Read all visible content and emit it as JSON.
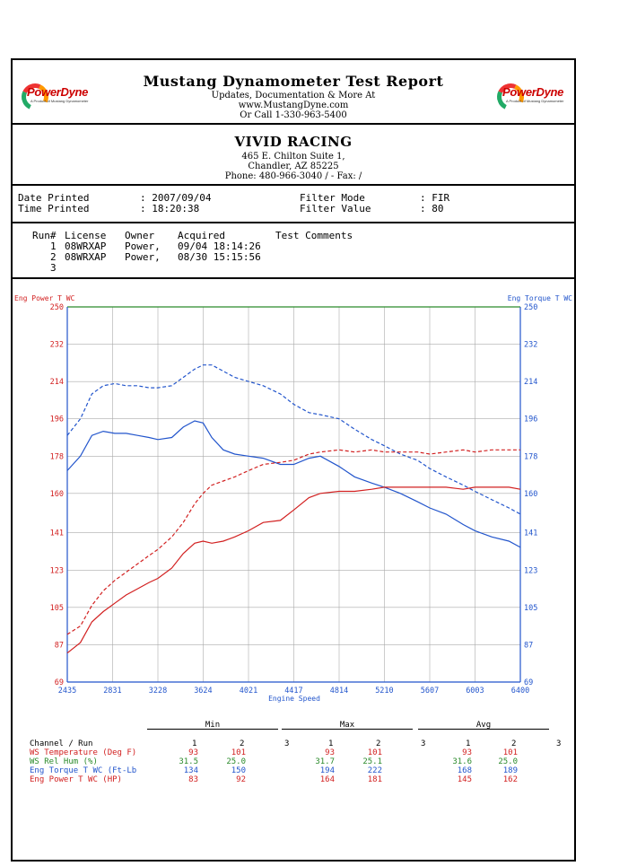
{
  "header": {
    "title": "Mustang Dynamometer Test Report",
    "line1": "Updates, Documentation & More At",
    "line2": "www.MustangDyne.com",
    "line3": "Or Call 1-330-963-5400",
    "logo_text": "PowerDyne",
    "logo_sub": "A Product of Mustang Dynamometer"
  },
  "shop": {
    "name": "VIVID RACING",
    "address1": "465 E. Chilton Suite 1,",
    "address2": "Chandler, AZ  85225",
    "phone": "Phone: 480-966-3040 /  - Fax: /"
  },
  "printed": {
    "date_label": "Date Printed",
    "date_value": ": 2007/09/04",
    "time_label": "Time Printed",
    "time_value": ": 18:20:38",
    "filter_mode_label": "Filter Mode",
    "filter_mode_value": ": FIR",
    "filter_value_label": "Filter Value",
    "filter_value_value": ": 80"
  },
  "runs": {
    "headers": [
      "Run#",
      "License",
      "Owner",
      "Acquired",
      "Test Comments"
    ],
    "rows": [
      {
        "run": "1",
        "license": "08WRXAP",
        "owner": "Power,",
        "acquired": "09/04 18:14:26",
        "comments": ""
      },
      {
        "run": "2",
        "license": "08WRXAP",
        "owner": "Power,",
        "acquired": "08/30 15:15:56",
        "comments": ""
      },
      {
        "run": "3",
        "license": "",
        "owner": "",
        "acquired": "",
        "comments": ""
      }
    ]
  },
  "chart_data": {
    "type": "line",
    "title": "",
    "xlabel": "Engine Speed",
    "ylabel_left": "Eng Power T WC",
    "ylabel_right": "Eng Torque T WC",
    "xlim": [
      2435,
      6400
    ],
    "ylim": [
      69,
      250
    ],
    "x_ticks": [
      "2435",
      "2831",
      "3228",
      "3624",
      "4021",
      "4417",
      "4814",
      "5210",
      "5607",
      "6003",
      "6400"
    ],
    "y_ticks": [
      "69",
      "87",
      "105",
      "123",
      "141",
      "160",
      "178",
      "196",
      "214",
      "232",
      "250"
    ],
    "colors": {
      "power": "#d22020",
      "torque": "#2255cc",
      "grid": "#aaaaaa",
      "top_line": "#2a8a2a"
    },
    "series": [
      {
        "name": "Eng Torque T WC",
        "run": 1,
        "style": "solid",
        "color": "#2255cc",
        "x": [
          2435,
          2550,
          2650,
          2750,
          2850,
          2950,
          3050,
          3150,
          3228,
          3350,
          3450,
          3550,
          3624,
          3700,
          3800,
          3900,
          4021,
          4150,
          4300,
          4417,
          4550,
          4650,
          4814,
          4950,
          5100,
          5210,
          5350,
          5500,
          5607,
          5750,
          5900,
          6003,
          6150,
          6300,
          6400
        ],
        "y": [
          171,
          178,
          188,
          190,
          189,
          189,
          188,
          187,
          186,
          187,
          192,
          195,
          194,
          187,
          181,
          179,
          178,
          177,
          174,
          174,
          177,
          178,
          173,
          168,
          165,
          163,
          160,
          156,
          153,
          150,
          145,
          142,
          139,
          137,
          134
        ]
      },
      {
        "name": "Eng Torque T WC",
        "run": 2,
        "style": "dashed",
        "color": "#2255cc",
        "x": [
          2435,
          2550,
          2650,
          2750,
          2850,
          2950,
          3050,
          3150,
          3228,
          3350,
          3450,
          3550,
          3624,
          3700,
          3800,
          3900,
          4021,
          4150,
          4300,
          4417,
          4550,
          4650,
          4814,
          4950,
          5100,
          5210,
          5350,
          5500,
          5607,
          5750,
          5900,
          6003,
          6150,
          6300,
          6400
        ],
        "y": [
          188,
          196,
          208,
          212,
          213,
          212,
          212,
          211,
          211,
          212,
          216,
          220,
          222,
          222,
          219,
          216,
          214,
          212,
          208,
          203,
          199,
          198,
          196,
          191,
          186,
          183,
          179,
          176,
          172,
          168,
          164,
          161,
          157,
          153,
          150
        ]
      },
      {
        "name": "Eng Power T WC",
        "run": 1,
        "style": "solid",
        "color": "#d22020",
        "x": [
          2435,
          2550,
          2650,
          2750,
          2850,
          2950,
          3050,
          3150,
          3228,
          3350,
          3450,
          3550,
          3624,
          3700,
          3800,
          3900,
          4021,
          4150,
          4300,
          4417,
          4550,
          4650,
          4814,
          4950,
          5100,
          5210,
          5350,
          5500,
          5607,
          5750,
          5900,
          6003,
          6150,
          6300,
          6400
        ],
        "y": [
          83,
          88,
          98,
          103,
          107,
          111,
          114,
          117,
          119,
          124,
          131,
          136,
          137,
          136,
          137,
          139,
          142,
          146,
          147,
          152,
          158,
          160,
          161,
          161,
          162,
          163,
          163,
          163,
          163,
          163,
          162,
          163,
          163,
          163,
          162
        ]
      },
      {
        "name": "Eng Power T WC",
        "run": 2,
        "style": "dashed",
        "color": "#d22020",
        "x": [
          2435,
          2550,
          2650,
          2750,
          2850,
          2950,
          3050,
          3150,
          3228,
          3350,
          3450,
          3550,
          3624,
          3700,
          3800,
          3900,
          4021,
          4150,
          4300,
          4417,
          4550,
          4650,
          4814,
          4950,
          5100,
          5210,
          5350,
          5500,
          5607,
          5750,
          5900,
          6003,
          6150,
          6300,
          6400
        ],
        "y": [
          92,
          96,
          106,
          113,
          118,
          122,
          126,
          130,
          133,
          139,
          146,
          155,
          160,
          164,
          166,
          168,
          171,
          174,
          175,
          176,
          179,
          180,
          181,
          180,
          181,
          180,
          180,
          180,
          179,
          180,
          181,
          180,
          181,
          181,
          181
        ]
      }
    ]
  },
  "stats": {
    "group_headers": [
      "Min",
      "Max",
      "Avg"
    ],
    "channel_header": "Channel / Run",
    "run_numbers": [
      "1",
      "2",
      "3"
    ],
    "rows": [
      {
        "label": "WS Temperature (Deg F)",
        "color": "#d22020",
        "values": [
          "93",
          "101",
          "",
          "93",
          "101",
          "",
          "93",
          "101",
          ""
        ]
      },
      {
        "label": "WS Rel Hum (%)",
        "color": "#2a8a2a",
        "values": [
          "31.5",
          "25.0",
          "",
          "31.7",
          "25.1",
          "",
          "31.6",
          "25.0",
          ""
        ]
      },
      {
        "label": "Eng Torque T WC (Ft-Lb",
        "color": "#2255cc",
        "values": [
          "134",
          "150",
          "",
          "194",
          "222",
          "",
          "168",
          "189",
          ""
        ]
      },
      {
        "label": "Eng Power T WC (HP)",
        "color": "#d22020",
        "values": [
          "83",
          "92",
          "",
          "164",
          "181",
          "",
          "145",
          "162",
          ""
        ]
      }
    ]
  }
}
